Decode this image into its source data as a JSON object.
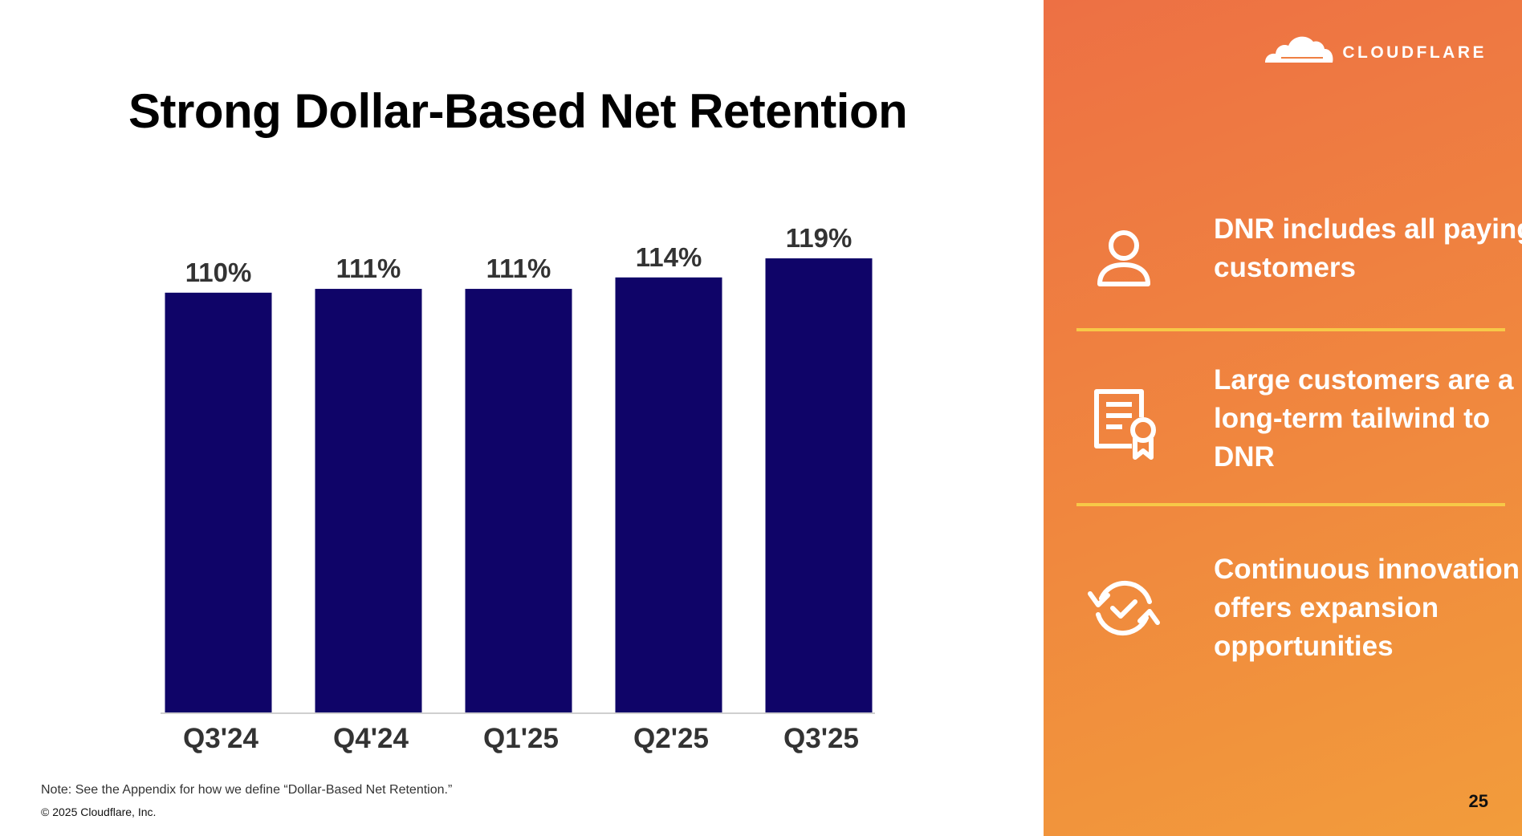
{
  "slide": {
    "title": "Strong Dollar-Based Net Retention",
    "note": "Note: See the Appendix for how we define “Dollar-Based Net Retention.”",
    "copyright": "© 2025 Cloudflare, Inc.",
    "page_number": "25"
  },
  "brand": {
    "logo_text": "CLOUDFLARE"
  },
  "features": [
    {
      "icon": "person-icon",
      "text": "DNR includes all paying customers"
    },
    {
      "icon": "certificate-icon",
      "text": "Large customers are a long-term tailwind to DNR"
    },
    {
      "icon": "refresh-check-icon",
      "text": "Continuous innovation offers expansion opportunities"
    }
  ],
  "colors": {
    "bar": "#0f0468",
    "label": "#333333",
    "panel_start": "#ed7044",
    "panel_end": "#f29c3b",
    "divider": "#f7c948"
  },
  "chart_data": {
    "type": "bar",
    "title": "Strong Dollar-Based Net Retention",
    "categories": [
      "Q3'24",
      "Q4'24",
      "Q1'25",
      "Q2'25",
      "Q3'25"
    ],
    "values": [
      110,
      111,
      111,
      114,
      119
    ],
    "data_labels": [
      "110%",
      "111%",
      "111%",
      "114%",
      "119%"
    ],
    "xlabel": "",
    "ylabel": "",
    "ylim": [
      0,
      119
    ],
    "grid": false,
    "legend": "none"
  }
}
